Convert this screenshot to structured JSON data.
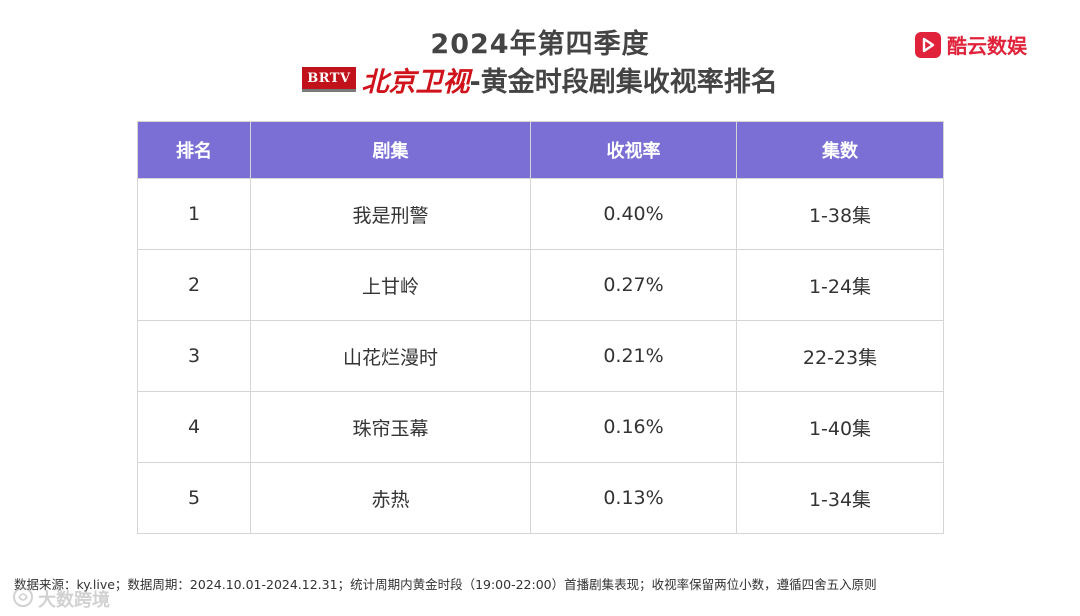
{
  "header": {
    "title_line1": "2024年第四季度",
    "station_logo_text": "BRTV",
    "station_name": "北京卫视",
    "title_rest": "-黄金时段剧集收视率排名"
  },
  "brand": {
    "name": "酷云数娱",
    "icon": "play-icon",
    "color": "#e0223a"
  },
  "table": {
    "header_color": "#7b6fd6",
    "columns": [
      "排名",
      "剧集",
      "收视率",
      "集数"
    ],
    "rows": [
      {
        "rank": "1",
        "title": "我是刑警",
        "rating": "0.40%",
        "episodes": "1-38集"
      },
      {
        "rank": "2",
        "title": "上甘岭",
        "rating": "0.27%",
        "episodes": "1-24集"
      },
      {
        "rank": "3",
        "title": "山花烂漫时",
        "rating": "0.21%",
        "episodes": "22-23集"
      },
      {
        "rank": "4",
        "title": "珠帘玉幕",
        "rating": "0.16%",
        "episodes": "1-40集"
      },
      {
        "rank": "5",
        "title": "赤热",
        "rating": "0.13%",
        "episodes": "1-34集"
      }
    ]
  },
  "footnote": "数据来源：ky.live；数据周期：2024.10.01-2024.12.31；统计周期内黄金时段（19:00-22:00）首播剧集表现；收视率保留两位小数，遵循四舍五入原则",
  "watermark": {
    "text": "大数跨境",
    "icon": "watermark-logo-icon"
  }
}
